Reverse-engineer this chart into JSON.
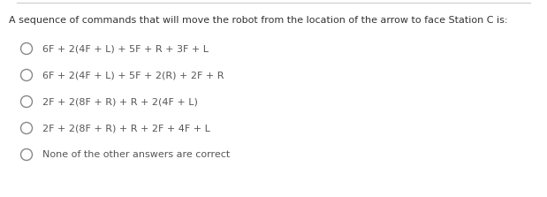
{
  "background_color": "#ffffff",
  "top_line_color": "#cccccc",
  "title": "A sequence of commands that will move the robot from the location of the arrow to face Station C is:",
  "title_fontsize": 8.0,
  "title_color": "#333333",
  "options": [
    "6F + 2(4F + L) + 5F + R + 3F + L",
    "6F + 2(4F + L) + 5F + 2(R) + 2F + R",
    "2F + 2(8F + R) + R + 2(4F + L)",
    "2F + 2(8F + R) + R + 2F + 4F + L",
    "None of the other answers are correct"
  ],
  "option_fontsize": 8.0,
  "option_color": "#555555",
  "circle_color": "#888888",
  "circle_linewidth": 1.0,
  "fig_width": 6.19,
  "fig_height": 2.23,
  "dpi": 100
}
